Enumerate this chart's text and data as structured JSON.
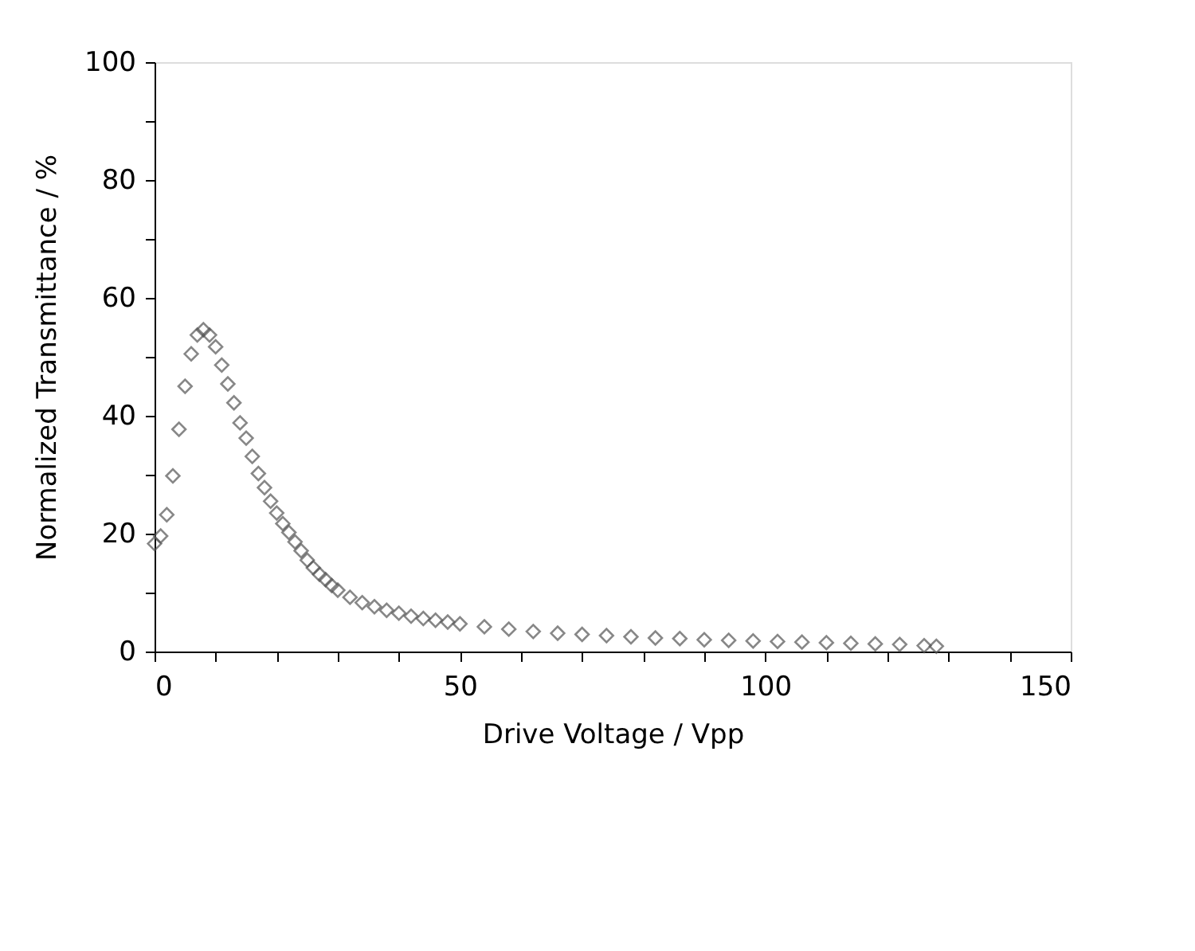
{
  "chart_data": {
    "type": "scatter",
    "xlabel": "Drive Voltage / Vpp",
    "ylabel": "Normalized Transmittance / %",
    "x": [
      0,
      1,
      2,
      3,
      4,
      5,
      6,
      7,
      8,
      9,
      10,
      11,
      12,
      13,
      14,
      15,
      16,
      17,
      18,
      19,
      20,
      21,
      22,
      23,
      24,
      25,
      26,
      27,
      28,
      29,
      30,
      32,
      34,
      36,
      38,
      40,
      42,
      44,
      46,
      48,
      50,
      54,
      58,
      62,
      66,
      70,
      74,
      78,
      82,
      86,
      90,
      94,
      98,
      102,
      106,
      110,
      114,
      118,
      122,
      126,
      128
    ],
    "series": [
      {
        "color": "#555555",
        "values": [
          18.3,
          19.6,
          23.2,
          29.8,
          37.7,
          45,
          50.5,
          53.7,
          54.6,
          53.7,
          51.7,
          48.6,
          45.4,
          42.2,
          38.8,
          36.2,
          33.1,
          30.2,
          27.8,
          25.5,
          23.5,
          21.7,
          20.2,
          18.6,
          17.1,
          15.5,
          14.2,
          13.1,
          12.2,
          11.2,
          10.4,
          9.2,
          8.3,
          7.6,
          7.0,
          6.5,
          6.0,
          5.6,
          5.3,
          5.0,
          4.7,
          4.2,
          3.8,
          3.4,
          3.1,
          2.9,
          2.7,
          2.5,
          2.3,
          2.2,
          2.0,
          1.9,
          1.8,
          1.7,
          1.6,
          1.5,
          1.4,
          1.3,
          1.2,
          1.0,
          0.9
        ]
      }
    ],
    "xlim": [
      0,
      150
    ],
    "ylim": [
      0,
      100
    ],
    "xticks": [
      0,
      {
        "value": 10,
        "label": null
      },
      {
        "value": 20,
        "label": null
      },
      {
        "value": 30,
        "label": null
      },
      {
        "value": 40,
        "label": null
      },
      50,
      {
        "value": 60,
        "label": null
      },
      {
        "value": 70,
        "label": null
      },
      {
        "value": 80,
        "label": null
      },
      {
        "value": 90,
        "label": null
      },
      100,
      {
        "value": 110,
        "label": null
      },
      {
        "value": 120,
        "label": null
      },
      {
        "value": 130,
        "label": null
      },
      {
        "value": 140,
        "label": null
      },
      150
    ],
    "yticks": [
      0,
      {
        "value": 10,
        "label": null
      },
      20,
      {
        "value": 30,
        "label": null
      },
      40,
      {
        "value": 50,
        "label": null
      },
      60,
      {
        "value": 70,
        "label": null
      },
      80,
      {
        "value": 90,
        "label": null
      },
      100
    ],
    "marker": "diamond",
    "grid": false,
    "legend": false
  }
}
